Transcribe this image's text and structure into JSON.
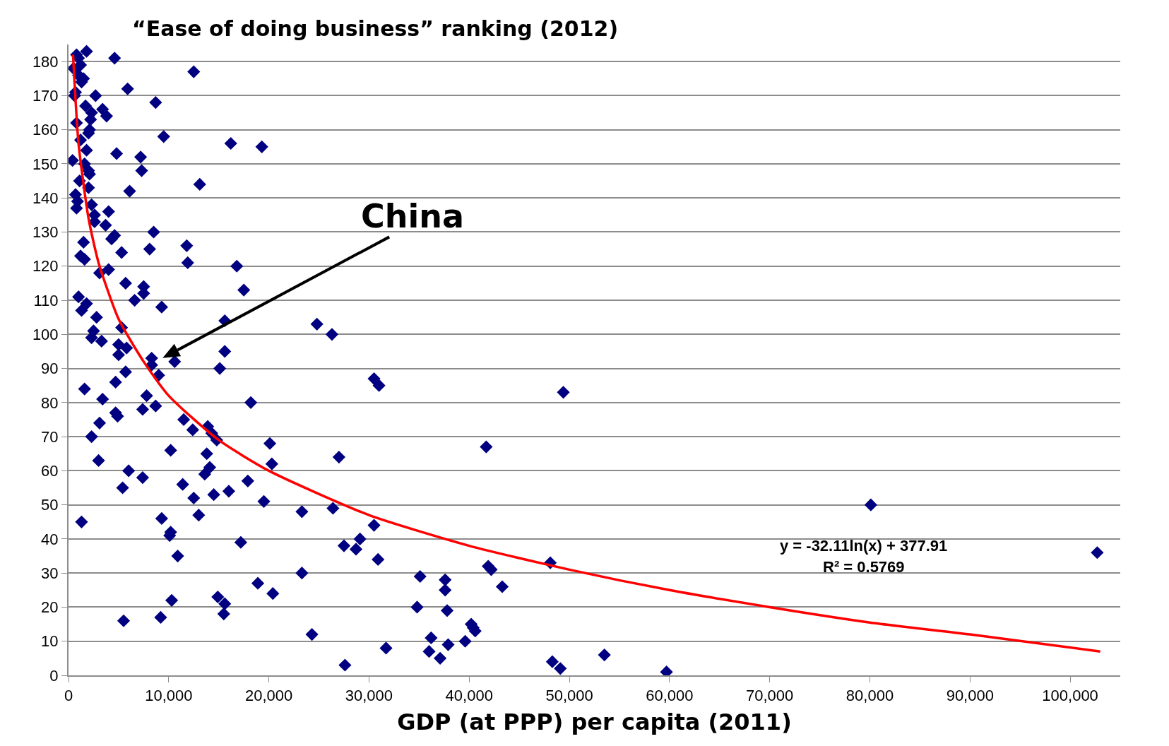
{
  "chart_data": {
    "type": "scatter",
    "title": "“Ease of doing business” ranking (2012)",
    "xlabel": "GDP (at PPP) per capita (2011)",
    "annotations": [
      "China",
      "y = -32.11ln(x) + 377.91",
      "R² = 0.5769"
    ],
    "xlim": [
      0,
      105000
    ],
    "ylim": [
      0,
      185
    ],
    "xticks": [
      0,
      {
        "value": 10000,
        "label": "10,000"
      },
      {
        "value": 20000,
        "label": "20,000"
      },
      {
        "value": 30000,
        "label": "30,000"
      },
      {
        "value": 40000,
        "label": "40,000"
      },
      {
        "value": 50000,
        "label": "50,000"
      },
      {
        "value": 60000,
        "label": "60,000"
      },
      {
        "value": 70000,
        "label": "70,000"
      },
      {
        "value": 80000,
        "label": "80,000"
      },
      {
        "value": 90000,
        "label": "90,000"
      },
      {
        "value": 100000,
        "label": "100,000"
      }
    ],
    "yticks": [
      0,
      10,
      20,
      30,
      40,
      50,
      60,
      70,
      80,
      90,
      100,
      110,
      120,
      130,
      140,
      150,
      160,
      170,
      180
    ],
    "grid": "y",
    "series": [
      {
        "marker": "diamond",
        "color": "#000080",
        "x": [
          500,
          700,
          600,
          800,
          1000,
          1200,
          1800,
          1000,
          1300,
          1500,
          4600,
          12500,
          2700,
          400,
          800,
          1200,
          1700,
          2300,
          3400,
          3800,
          2200,
          2100,
          2000,
          5900,
          8700,
          9500,
          16200,
          19300,
          13100,
          4800,
          7200,
          1800,
          1600,
          2000,
          2100,
          7300,
          1100,
          700,
          900,
          800,
          2000,
          6100,
          2300,
          2600,
          4000,
          2600,
          3700,
          8500,
          4300,
          4600,
          1500,
          11800,
          8100,
          5300,
          1200,
          1600,
          11900,
          16800,
          4000,
          3100,
          5700,
          7500,
          7500,
          17500,
          6600,
          1000,
          1800,
          1300,
          9300,
          15600,
          24800,
          26300,
          2500,
          2800,
          5300,
          2300,
          3300,
          5000,
          5800,
          15600,
          5000,
          8300,
          8300,
          10600,
          15100,
          5700,
          9000,
          30500,
          31000,
          49400,
          1600,
          4700,
          7800,
          3400,
          8700,
          18200,
          7400,
          4700,
          4900,
          11500,
          3100,
          12400,
          13900,
          14300,
          14800,
          2300,
          20100,
          41700,
          10200,
          13800,
          27000,
          3000,
          20300,
          14100,
          6000,
          13600,
          7400,
          17900,
          11400,
          5400,
          16000,
          14500,
          12500,
          19500,
          80100,
          26400,
          23300,
          13000,
          9300,
          1300,
          30500,
          10200,
          10100,
          29100,
          17200,
          27500,
          28700,
          102700,
          10900,
          30900,
          48100,
          41900,
          42200,
          23300,
          35100,
          37600,
          18900,
          43300,
          37600,
          20400,
          14900,
          10300,
          15600,
          34800,
          37800,
          15500,
          9200,
          5500,
          40200,
          40400,
          40600,
          24300,
          36200,
          39600,
          37900,
          31700,
          36000,
          53500,
          37100,
          48300,
          27600,
          49100,
          59700
        ],
        "values": [
          178,
          171,
          170,
          182,
          181,
          179,
          183,
          176,
          174,
          175,
          181,
          177,
          170,
          151,
          162,
          157,
          167,
          165,
          166,
          164,
          163,
          160,
          159,
          172,
          168,
          158,
          156,
          155,
          144,
          153,
          152,
          154,
          150,
          148,
          147,
          148,
          145,
          141,
          139,
          137,
          143,
          142,
          138,
          135,
          136,
          133,
          132,
          130,
          128,
          129,
          127,
          126,
          125,
          124,
          123,
          122,
          121,
          120,
          119,
          118,
          115,
          114,
          112,
          113,
          110,
          111,
          109,
          107,
          108,
          104,
          103,
          100,
          101,
          105,
          102,
          99,
          98,
          97,
          96,
          95,
          94,
          93,
          91,
          92,
          90,
          89,
          88,
          87,
          85,
          83,
          84,
          86,
          82,
          81,
          79,
          80,
          78,
          77,
          76,
          75,
          74,
          72,
          73,
          71,
          69,
          70,
          68,
          67,
          66,
          65,
          64,
          63,
          62,
          61,
          60,
          59,
          58,
          57,
          56,
          55,
          54,
          53,
          52,
          51,
          50,
          49,
          48,
          47,
          46,
          45,
          44,
          42,
          41,
          40,
          39,
          38,
          37,
          36,
          35,
          34,
          33,
          32,
          31,
          30,
          29,
          28,
          27,
          26,
          25,
          24,
          23,
          22,
          21,
          20,
          19,
          18,
          17,
          16,
          15,
          14,
          13,
          12,
          11,
          10,
          9,
          8,
          7,
          6,
          5,
          4,
          3,
          2,
          1
        ]
      },
      {
        "type": "line",
        "color": "#ff0000",
        "x": [
          450,
          1000,
          2000,
          3000,
          5000,
          7500,
          10000,
          15000,
          20000,
          30000,
          40000,
          50000,
          60000,
          70000,
          80000,
          90000,
          103000
        ],
        "values": [
          182,
          156,
          134,
          121,
          104.5,
          92,
          82,
          69,
          60,
          47,
          38,
          31,
          25,
          20,
          15.5,
          12,
          7
        ]
      }
    ]
  }
}
